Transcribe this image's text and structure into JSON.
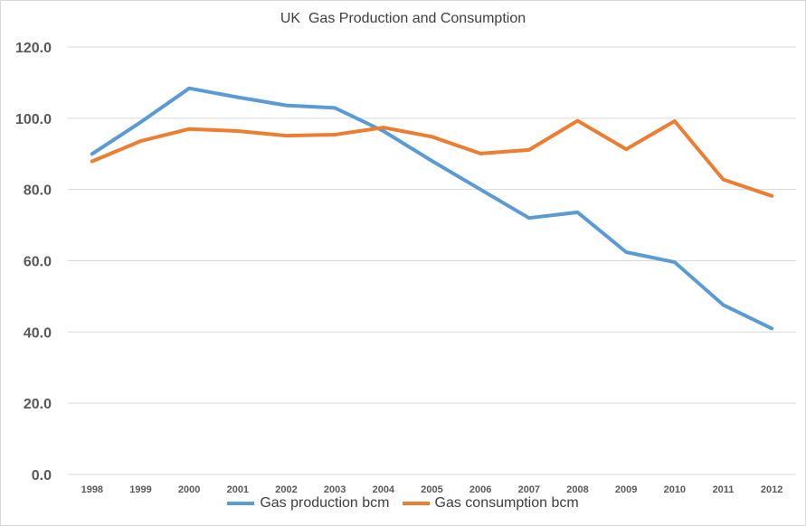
{
  "chart_data": {
    "type": "line",
    "title": "UK  Gas Production and Consumption",
    "categories": [
      "1998",
      "1999",
      "2000",
      "2001",
      "2002",
      "2003",
      "2004",
      "2005",
      "2006",
      "2007",
      "2008",
      "2009",
      "2010",
      "2011",
      "2012"
    ],
    "y_ticks": [
      "0.0",
      "20.0",
      "40.0",
      "60.0",
      "80.0",
      "100.0",
      "120.0"
    ],
    "ylim": [
      0,
      120
    ],
    "grid": true,
    "legend_position": "bottom",
    "series": [
      {
        "name": "Gas production bcm",
        "color": "#5b9bd5",
        "values": [
          90.0,
          98.9,
          108.4,
          105.9,
          103.6,
          102.9,
          96.4,
          88.0,
          80.0,
          72.0,
          73.6,
          62.4,
          59.6,
          47.6,
          41.0
        ]
      },
      {
        "name": "Gas consumption bcm",
        "color": "#ed7d31",
        "values": [
          87.9,
          93.6,
          97.0,
          96.4,
          95.1,
          95.4,
          97.4,
          94.8,
          90.1,
          91.1,
          99.3,
          91.3,
          99.2,
          82.8,
          78.2
        ]
      }
    ]
  }
}
